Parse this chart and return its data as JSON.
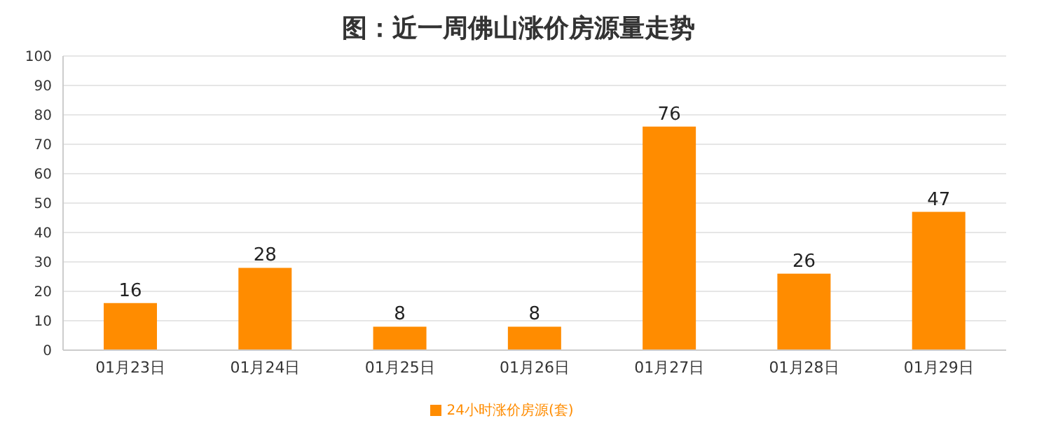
{
  "chart_data": {
    "type": "bar",
    "title": "图：近一周佛山涨价房源量走势",
    "categories": [
      "01月23日",
      "01月24日",
      "01月25日",
      "01月26日",
      "01月27日",
      "01月28日",
      "01月29日"
    ],
    "series": [
      {
        "name": "24小时涨价房源(套)",
        "color": "#ff8c00",
        "values": [
          16,
          28,
          8,
          8,
          76,
          26,
          47
        ]
      }
    ],
    "ylim": [
      0,
      100
    ],
    "yticks": [
      0,
      10,
      20,
      30,
      40,
      50,
      60,
      70,
      80,
      90,
      100
    ],
    "grid": "y",
    "legend": "bottom",
    "data_labels": true
  }
}
